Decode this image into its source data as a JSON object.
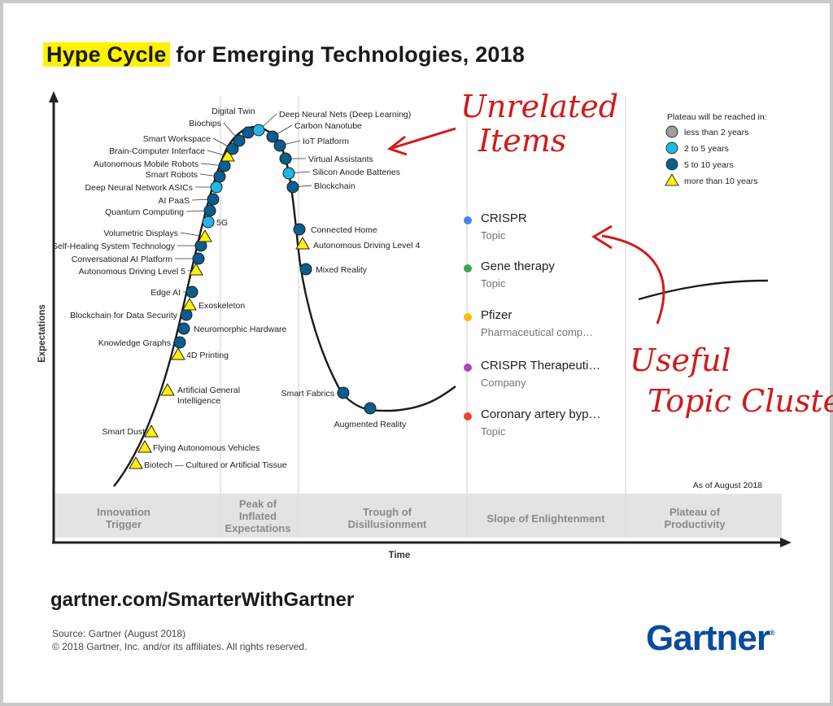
{
  "title": {
    "highlight": "Hype Cycle",
    "rest": " for Emerging Technologies, 2018"
  },
  "legend": {
    "heading": "Plateau will be reached in:",
    "items": [
      {
        "label": "less than 2 years",
        "shape": "circle",
        "color": "#9e9e9e"
      },
      {
        "label": "2 to 5 years",
        "shape": "circle",
        "color": "#21b5e8"
      },
      {
        "label": "5 to 10 years",
        "shape": "circle",
        "color": "#0b5d8e"
      },
      {
        "label": "more than 10 years",
        "shape": "triangle",
        "color": "#fff200"
      }
    ]
  },
  "as_of": "As of August 2018",
  "axes": {
    "y_label": "Expectations",
    "x_label": "Time"
  },
  "phases": [
    [
      "Innovation",
      "Trigger"
    ],
    [
      "Peak of",
      "Inflated",
      "Expectations"
    ],
    [
      "Trough of",
      "Disillusionment"
    ],
    [
      "Slope of Enlightenment"
    ],
    [
      "Plateau of",
      "Productivity"
    ]
  ],
  "technologies": [
    {
      "name": "Biotech — Cultured or Artificial Tissue",
      "marker": "triangle"
    },
    {
      "name": "Flying Autonomous Vehicles",
      "marker": "triangle"
    },
    {
      "name": "Smart Dust",
      "marker": "triangle"
    },
    {
      "name": "Artificial General Intelligence",
      "marker": "triangle"
    },
    {
      "name": "4D Printing",
      "marker": "triangle"
    },
    {
      "name": "Knowledge Graphs",
      "marker": "dark"
    },
    {
      "name": "Neuromorphic Hardware",
      "marker": "dark"
    },
    {
      "name": "Blockchain for Data Security",
      "marker": "dark"
    },
    {
      "name": "Exoskeleton",
      "marker": "triangle"
    },
    {
      "name": "Edge AI",
      "marker": "dark"
    },
    {
      "name": "Autonomous Driving Level 5",
      "marker": "triangle"
    },
    {
      "name": "Conversational AI Platform",
      "marker": "dark"
    },
    {
      "name": "Self-Healing System Technology",
      "marker": "dark"
    },
    {
      "name": "Volumetric Displays",
      "marker": "triangle"
    },
    {
      "name": "5G",
      "marker": "light"
    },
    {
      "name": "Quantum Computing",
      "marker": "dark"
    },
    {
      "name": "AI PaaS",
      "marker": "dark"
    },
    {
      "name": "Deep Neural Network ASICs",
      "marker": "light"
    },
    {
      "name": "Smart Robots",
      "marker": "dark"
    },
    {
      "name": "Autonomous Mobile Robots",
      "marker": "dark"
    },
    {
      "name": "Brain-Computer Interface",
      "marker": "triangle"
    },
    {
      "name": "Smart Workspace",
      "marker": "dark"
    },
    {
      "name": "Biochips",
      "marker": "dark"
    },
    {
      "name": "Digital Twin",
      "marker": "dark"
    },
    {
      "name": "Deep Neural Nets (Deep Learning)",
      "marker": "light"
    },
    {
      "name": "Carbon Nanotube",
      "marker": "dark"
    },
    {
      "name": "IoT Platform",
      "marker": "dark"
    },
    {
      "name": "Virtual Assistants",
      "marker": "dark"
    },
    {
      "name": "Silicon Anode Batteries",
      "marker": "light"
    },
    {
      "name": "Blockchain",
      "marker": "dark"
    },
    {
      "name": "Connected Home",
      "marker": "dark"
    },
    {
      "name": "Autonomous Driving Level 4",
      "marker": "triangle"
    },
    {
      "name": "Mixed Reality",
      "marker": "dark"
    },
    {
      "name": "Smart Fabrics",
      "marker": "dark"
    },
    {
      "name": "Augmented Reality",
      "marker": "dark"
    }
  ],
  "annotations": {
    "top": [
      "Unrelated",
      "Items"
    ],
    "bottom": [
      "Useful",
      "Topic Cluster"
    ]
  },
  "panel": {
    "items": [
      {
        "name": "CRISPR",
        "sub": "Topic",
        "color": "#4285f4"
      },
      {
        "name": "Gene therapy",
        "sub": "Topic",
        "color": "#34a853"
      },
      {
        "name": "Pfizer",
        "sub": "Pharmaceutical comp…",
        "color": "#fbbc05"
      },
      {
        "name": "CRISPR Therapeuti…",
        "sub": "Company",
        "color": "#ab47bc"
      },
      {
        "name": "Coronary artery byp…",
        "sub": "Topic",
        "color": "#ea4335"
      }
    ]
  },
  "footer": {
    "url": "gartner.com/SmarterWithGartner",
    "source_line1": "Source: Gartner (August 2018)",
    "source_line2": "© 2018 Gartner, Inc. and/or its affiliates. All rights reserved.",
    "brand": "Gartner",
    "brand_mark": "®"
  }
}
